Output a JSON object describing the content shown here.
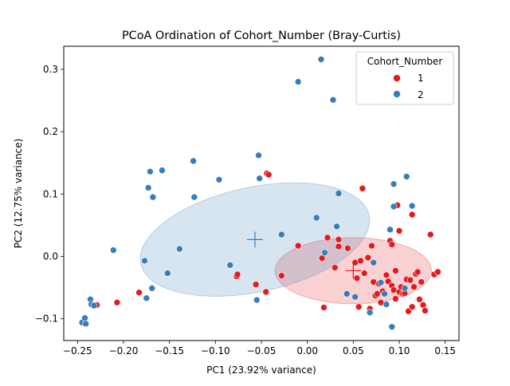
{
  "chart_data": {
    "type": "scatter",
    "title": "PCoA Ordination of Cohort_Number (Bray-Curtis)",
    "xlabel": "PC1 (23.92% variance)",
    "ylabel": "PC2 (12.75% variance)",
    "xlim": [
      -0.265,
      0.165
    ],
    "ylim": [
      -0.135,
      0.337
    ],
    "xticks": [
      -0.25,
      -0.2,
      -0.15,
      -0.1,
      -0.05,
      0.0,
      0.05,
      0.1,
      0.15
    ],
    "xtick_labels": [
      "−0.25",
      "−0.20",
      "−0.15",
      "−0.10",
      "−0.05",
      "0.00",
      "0.05",
      "0.10",
      "0.15"
    ],
    "yticks": [
      -0.1,
      0.0,
      0.1,
      0.2,
      0.3
    ],
    "ytick_labels": [
      "−0.1",
      "0.0",
      "0.1",
      "0.2",
      "0.3"
    ],
    "grid": false,
    "legend": {
      "title": "Cohort_Number",
      "placement": "top-right",
      "entries": [
        "1",
        "2"
      ]
    },
    "series": [
      {
        "name": "1",
        "color": "#e41a1c",
        "centroid": [
          0.05,
          -0.023
        ],
        "ellipse": {
          "center": [
            0.05,
            -0.023
          ],
          "rx": 0.085,
          "ry": 0.053,
          "angle_deg": 0
        },
        "points": [
          [
            -0.229,
            -0.078
          ],
          [
            -0.207,
            -0.074
          ],
          [
            -0.183,
            -0.058
          ],
          [
            -0.077,
            -0.032
          ],
          [
            -0.076,
            -0.029
          ],
          [
            -0.056,
            -0.045
          ],
          [
            -0.045,
            -0.057
          ],
          [
            -0.044,
            0.133
          ],
          [
            -0.042,
            0.131
          ],
          [
            -0.028,
            -0.031
          ],
          [
            -0.01,
            0.017
          ],
          [
            0.016,
            -0.003
          ],
          [
            0.018,
            -0.082
          ],
          [
            0.022,
            0.03
          ],
          [
            0.03,
            -0.018
          ],
          [
            0.034,
            0.027
          ],
          [
            0.034,
            0.016
          ],
          [
            0.044,
            0.013
          ],
          [
            0.052,
            -0.01
          ],
          [
            0.054,
            -0.035
          ],
          [
            0.056,
            -0.081
          ],
          [
            0.058,
            -0.007
          ],
          [
            0.06,
            0.109
          ],
          [
            0.062,
            -0.027
          ],
          [
            0.066,
            -0.002
          ],
          [
            0.068,
            -0.084
          ],
          [
            0.07,
            0.017
          ],
          [
            0.072,
            -0.041
          ],
          [
            0.074,
            -0.063
          ],
          [
            0.076,
            -0.06
          ],
          [
            0.078,
            -0.044
          ],
          [
            0.08,
            -0.074
          ],
          [
            0.082,
            -0.056
          ],
          [
            0.084,
            -0.06
          ],
          [
            0.086,
            -0.03
          ],
          [
            0.088,
            -0.04
          ],
          [
            0.09,
            0.025
          ],
          [
            0.092,
            0.019
          ],
          [
            0.092,
            -0.047
          ],
          [
            0.094,
            -0.054
          ],
          [
            0.096,
            -0.068
          ],
          [
            0.096,
            -0.023
          ],
          [
            0.098,
            0.082
          ],
          [
            0.1,
            -0.057
          ],
          [
            0.1,
            0.041
          ],
          [
            0.102,
            -0.049
          ],
          [
            0.104,
            -0.06
          ],
          [
            0.106,
            -0.059
          ],
          [
            0.108,
            -0.037
          ],
          [
            0.11,
            -0.088
          ],
          [
            0.112,
            -0.038
          ],
          [
            0.114,
            -0.081
          ],
          [
            0.114,
            0.067
          ],
          [
            0.116,
            -0.049
          ],
          [
            0.118,
            -0.028
          ],
          [
            0.12,
            -0.025
          ],
          [
            0.122,
            -0.069
          ],
          [
            0.124,
            -0.041
          ],
          [
            0.126,
            -0.078
          ],
          [
            0.128,
            -0.087
          ],
          [
            0.134,
            0.035
          ],
          [
            0.138,
            -0.029
          ],
          [
            0.142,
            -0.025
          ]
        ]
      },
      {
        "name": "2",
        "color": "#377eb8",
        "centroid": [
          -0.057,
          0.027
        ],
        "ellipse": {
          "center": [
            -0.057,
            0.027
          ],
          "rx": 0.127,
          "ry": 0.084,
          "angle_deg": -12
        },
        "points": [
          [
            -0.245,
            -0.106
          ],
          [
            -0.242,
            -0.099
          ],
          [
            -0.241,
            -0.108
          ],
          [
            -0.236,
            -0.069
          ],
          [
            -0.235,
            -0.077
          ],
          [
            -0.232,
            -0.079
          ],
          [
            -0.211,
            0.01
          ],
          [
            -0.177,
            -0.007
          ],
          [
            -0.175,
            -0.067
          ],
          [
            -0.173,
            0.11
          ],
          [
            -0.171,
            0.136
          ],
          [
            -0.169,
            -0.051
          ],
          [
            -0.168,
            0.095
          ],
          [
            -0.158,
            0.138
          ],
          [
            -0.152,
            -0.027
          ],
          [
            -0.139,
            0.012
          ],
          [
            -0.124,
            0.153
          ],
          [
            -0.123,
            0.095
          ],
          [
            -0.096,
            0.123
          ],
          [
            -0.084,
            -0.014
          ],
          [
            -0.053,
            0.162
          ],
          [
            -0.052,
            0.125
          ],
          [
            -0.028,
            0.035
          ],
          [
            -0.01,
            0.28
          ],
          [
            0.01,
            0.062
          ],
          [
            0.015,
            0.316
          ],
          [
            0.019,
            0.006
          ],
          [
            0.028,
            0.251
          ],
          [
            0.032,
            0.048
          ],
          [
            0.034,
            0.101
          ],
          [
            0.043,
            -0.06
          ],
          [
            0.052,
            -0.065
          ],
          [
            0.068,
            -0.09
          ],
          [
            0.072,
            -0.01
          ],
          [
            0.08,
            -0.042
          ],
          [
            0.084,
            -0.06
          ],
          [
            0.086,
            -0.077
          ],
          [
            0.09,
            0.043
          ],
          [
            0.092,
            -0.113
          ],
          [
            0.094,
            0.08
          ],
          [
            0.094,
            0.116
          ],
          [
            0.106,
            -0.051
          ],
          [
            0.108,
            0.128
          ],
          [
            0.114,
            0.081
          ],
          [
            -0.055,
            -0.07
          ]
        ]
      }
    ]
  }
}
